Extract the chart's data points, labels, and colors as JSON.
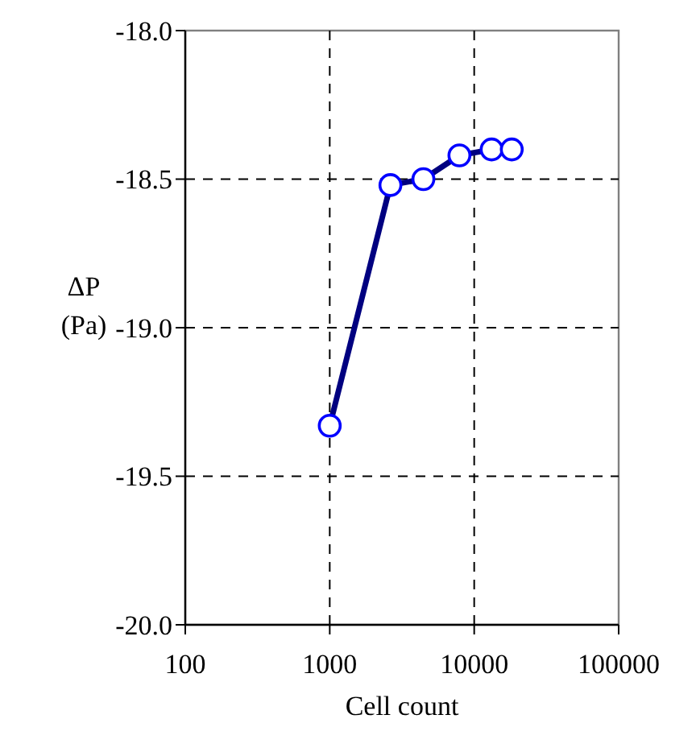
{
  "chart_data": {
    "type": "line",
    "xlabel": "Cell count",
    "ylabel": "ΔP (Pa)",
    "log": "x",
    "x": [
      1000,
      2630,
      4450,
      7900,
      13200,
      18200
    ],
    "series": [
      {
        "color": "#000080",
        "values": [
          -19.33,
          -18.52,
          -18.5,
          -18.42,
          -18.4,
          -18.4
        ]
      }
    ],
    "xlim": [
      100,
      100000
    ],
    "xticks": [
      100,
      1000,
      10000,
      100000
    ],
    "ylim": [
      -20,
      -18
    ],
    "yticks": [
      {
        "value": -20,
        "label": "-20.0"
      },
      {
        "value": -19.5,
        "label": "-19.5"
      },
      {
        "value": -19,
        "label": "-19.0"
      },
      {
        "value": -18.5,
        "label": "-18.5"
      },
      {
        "value": -18,
        "label": "-18.0"
      }
    ],
    "grid": true,
    "marker": "circle",
    "line_style": "solid"
  }
}
